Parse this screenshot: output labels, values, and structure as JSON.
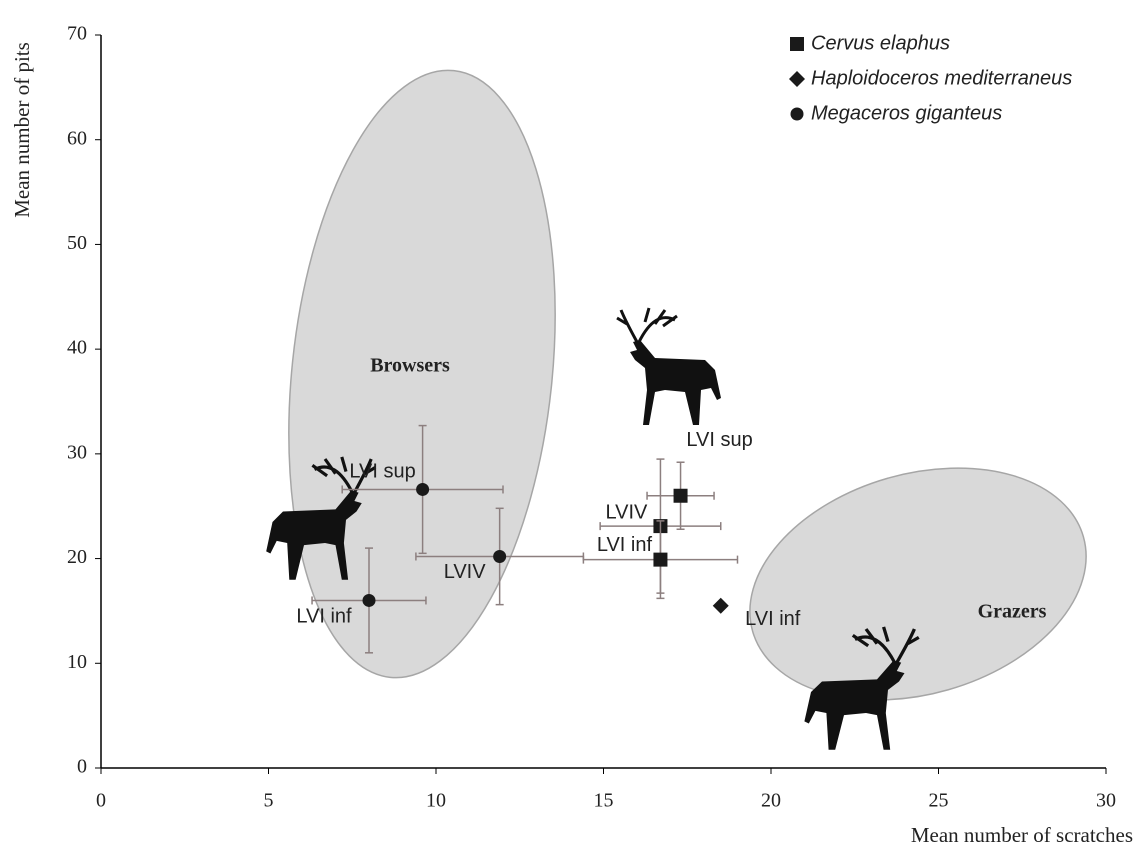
{
  "chart_data": {
    "type": "scatter",
    "xlabel": "Mean number of scratches",
    "ylabel": "Mean number of pits",
    "xlim": [
      0,
      30
    ],
    "ylim": [
      0,
      70
    ],
    "xticks": [
      0,
      5,
      10,
      15,
      20,
      25,
      30
    ],
    "yticks": [
      0,
      10,
      20,
      30,
      40,
      50,
      60,
      70
    ],
    "legend": "top-right",
    "regions": [
      {
        "label": "Browsers"
      },
      {
        "label": "Grazers"
      }
    ],
    "series": [
      {
        "name": "Cervus elaphus",
        "marker": "square",
        "color": "#1a1a1a",
        "labels": [
          "LVI sup",
          "LVIV",
          "LVI inf"
        ],
        "x": [
          17.3,
          16.7,
          16.7
        ],
        "y": [
          26.0,
          23.1,
          19.9
        ],
        "xerr": [
          1.0,
          1.8,
          2.3
        ],
        "yerr": [
          3.2,
          6.4,
          3.7
        ]
      },
      {
        "name": "Haploidoceros mediterraneus",
        "marker": "diamond",
        "color": "#1a1a1a",
        "labels": [
          "LVI inf"
        ],
        "x": [
          18.5
        ],
        "y": [
          15.5
        ]
      },
      {
        "name": "Megaceros giganteus",
        "marker": "circle",
        "color": "#1a1a1a",
        "labels": [
          "LVI sup",
          "LVIV",
          "LVI inf"
        ],
        "x": [
          9.6,
          11.9,
          8.0
        ],
        "y": [
          26.6,
          20.2,
          16.0
        ],
        "xerr": [
          2.4,
          2.5,
          1.7
        ],
        "yerr": [
          6.1,
          4.6,
          5.0
        ]
      }
    ]
  }
}
